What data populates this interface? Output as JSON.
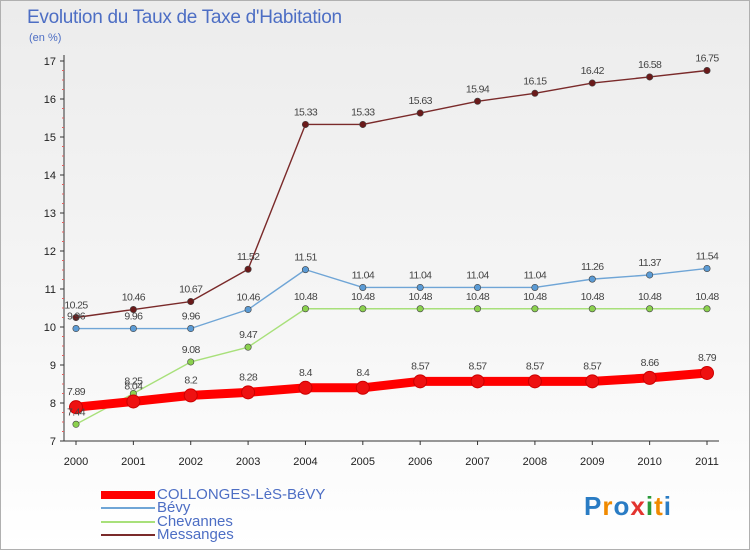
{
  "title": "Evolution du Taux de Taxe d'Habitation",
  "unit_label": "(en %)",
  "logo": {
    "text": "Proxiti",
    "letter_colors": [
      "#2a7cc4",
      "#f08a00",
      "#2a7cc4",
      "#e3342f",
      "#2a9a3a",
      "#f08a00",
      "#2a7cc4"
    ]
  },
  "chart_data": {
    "type": "line",
    "title": "Evolution du Taux de Taxe d'Habitation",
    "ylabel": "(en %)",
    "xlabel": "",
    "x": [
      "2000",
      "2001",
      "2002",
      "2003",
      "2004",
      "2005",
      "2006",
      "2007",
      "2008",
      "2009",
      "2010",
      "2011"
    ],
    "ylim": [
      7,
      17
    ],
    "yticks": [
      7,
      8,
      9,
      10,
      11,
      12,
      13,
      14,
      15,
      16,
      17
    ],
    "grid": false,
    "legend": "bottom-left",
    "series": [
      {
        "name": "COLLONGES-LèS-BéVY",
        "color": "#ff0000",
        "point_color": "#ee1111",
        "values": [
          7.89,
          8.04,
          8.2,
          8.28,
          8.4,
          8.4,
          8.57,
          8.57,
          8.57,
          8.57,
          8.66,
          8.79
        ]
      },
      {
        "name": "Bévy",
        "color": "#6fa5d6",
        "point_color": "#5b9bd5",
        "values": [
          9.96,
          9.96,
          9.96,
          10.46,
          11.51,
          11.04,
          11.04,
          11.04,
          11.04,
          11.26,
          11.37,
          11.54
        ]
      },
      {
        "name": "Chevannes",
        "color": "#a8e07a",
        "point_color": "#8bd14e",
        "values": [
          7.44,
          8.25,
          9.08,
          9.47,
          10.48,
          10.48,
          10.48,
          10.48,
          10.48,
          10.48,
          10.48,
          10.48
        ]
      },
      {
        "name": "Messanges",
        "color": "#7a2a2a",
        "point_color": "#6a1a1a",
        "values": [
          10.25,
          10.46,
          10.67,
          11.52,
          15.33,
          15.33,
          15.63,
          15.94,
          16.15,
          16.42,
          16.58,
          16.75
        ]
      }
    ]
  }
}
